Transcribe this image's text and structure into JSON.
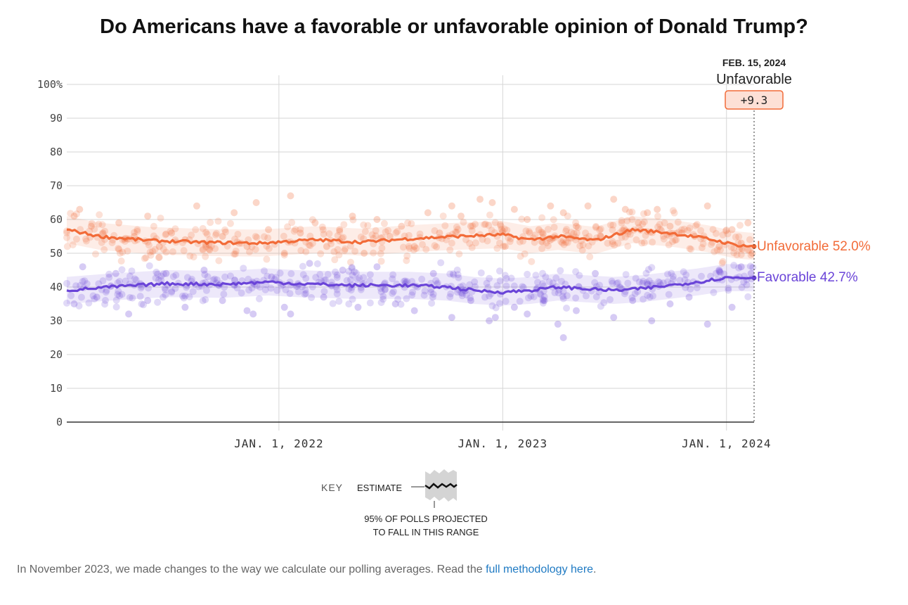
{
  "title": "Do Americans have a favorable or unfavorable opinion of Donald Trump?",
  "header": {
    "date": "FEB. 15, 2024",
    "leader": "Unfavorable",
    "margin": "+9.3"
  },
  "key": {
    "label": "KEY",
    "estimate": "ESTIMATE",
    "range_line1": "95% OF POLLS PROJECTED",
    "range_line2": "TO FALL IN THIS RANGE"
  },
  "footnote": {
    "text": "In November 2023, we made changes to the way we calculate our polling averages. Read the ",
    "link": "full methodology here",
    "end": "."
  },
  "colors": {
    "unfavorable": "#f26b38",
    "favorable": "#6a44d8",
    "margin_box_fill": "#fde0d6",
    "grid": "#d6d6d6"
  },
  "chart_data": {
    "type": "line",
    "x_range": [
      "2021-01-20",
      "2024-02-15"
    ],
    "x_ticks": [
      "JAN. 1, 2022",
      "JAN. 1, 2023",
      "JAN. 1, 2024"
    ],
    "x_tick_dates": [
      "2022-01-01",
      "2023-01-01",
      "2024-01-01"
    ],
    "ylim": [
      0,
      100
    ],
    "y_ticks": [
      "0",
      "10",
      "20",
      "30",
      "40",
      "50",
      "60",
      "70",
      "80",
      "90",
      "100%"
    ],
    "y_tick_values": [
      0,
      10,
      20,
      30,
      40,
      50,
      60,
      70,
      80,
      90,
      100
    ],
    "grid": true,
    "legend": "direct labels at right end",
    "band": "95% of polls projected to fall in this range",
    "series": [
      {
        "name": "Unfavorable",
        "end_label": "Unfavorable 52.0%",
        "final": 52.0,
        "color": "#f26b38",
        "band_halfwidth": 4,
        "estimate": [
          [
            "2021-01-20",
            57.0
          ],
          [
            "2021-03-15",
            55.0
          ],
          [
            "2021-06-01",
            53.8
          ],
          [
            "2021-09-01",
            53.2
          ],
          [
            "2021-12-01",
            53.0
          ],
          [
            "2022-03-01",
            54.0
          ],
          [
            "2022-05-15",
            53.3
          ],
          [
            "2022-08-01",
            54.3
          ],
          [
            "2022-10-15",
            55.0
          ],
          [
            "2023-01-01",
            55.5
          ],
          [
            "2023-02-15",
            54.0
          ],
          [
            "2023-04-01",
            55.0
          ],
          [
            "2023-06-01",
            53.8
          ],
          [
            "2023-08-01",
            57.0
          ],
          [
            "2023-10-01",
            56.0
          ],
          [
            "2023-12-01",
            54.3
          ],
          [
            "2024-01-15",
            52.5
          ],
          [
            "2024-02-15",
            52.0
          ]
        ],
        "polls": [
          [
            "2021-02-01",
            61
          ],
          [
            "2021-02-10",
            63
          ],
          [
            "2021-03-01",
            58
          ],
          [
            "2021-03-20",
            56
          ],
          [
            "2021-04-15",
            59
          ],
          [
            "2021-05-10",
            55
          ],
          [
            "2021-06-01",
            61
          ],
          [
            "2021-06-20",
            52
          ],
          [
            "2021-07-10",
            56
          ],
          [
            "2021-08-01",
            54
          ],
          [
            "2021-08-20",
            64
          ],
          [
            "2021-09-10",
            51
          ],
          [
            "2021-10-01",
            55
          ],
          [
            "2021-10-20",
            62
          ],
          [
            "2021-11-10",
            52
          ],
          [
            "2021-11-25",
            65
          ],
          [
            "2021-12-15",
            57
          ],
          [
            "2022-01-10",
            50
          ],
          [
            "2022-01-20",
            67
          ],
          [
            "2022-02-05",
            56
          ],
          [
            "2022-03-01",
            59
          ],
          [
            "2022-03-20",
            52
          ],
          [
            "2022-04-10",
            57
          ],
          [
            "2022-05-01",
            61
          ],
          [
            "2022-05-20",
            50
          ],
          [
            "2022-06-10",
            60
          ],
          [
            "2022-07-01",
            55
          ],
          [
            "2022-07-20",
            58
          ],
          [
            "2022-08-10",
            52
          ],
          [
            "2022-09-01",
            62
          ],
          [
            "2022-09-20",
            56
          ],
          [
            "2022-10-10",
            64
          ],
          [
            "2022-10-25",
            61
          ],
          [
            "2022-11-10",
            58
          ],
          [
            "2022-11-25",
            66
          ],
          [
            "2022-12-15",
            65
          ],
          [
            "2023-01-05",
            52
          ],
          [
            "2023-01-20",
            63
          ],
          [
            "2023-02-10",
            60
          ],
          [
            "2023-03-01",
            57
          ],
          [
            "2023-03-20",
            64
          ],
          [
            "2023-04-10",
            62
          ],
          [
            "2023-05-01",
            58
          ],
          [
            "2023-05-20",
            64
          ],
          [
            "2023-06-10",
            55
          ],
          [
            "2023-07-01",
            66
          ],
          [
            "2023-07-20",
            63
          ],
          [
            "2023-08-10",
            59
          ],
          [
            "2023-08-25",
            62
          ],
          [
            "2023-09-10",
            63
          ],
          [
            "2023-10-01",
            58
          ],
          [
            "2023-10-20",
            56
          ],
          [
            "2023-11-10",
            55
          ],
          [
            "2023-12-01",
            64
          ],
          [
            "2023-12-20",
            52
          ],
          [
            "2024-01-10",
            57
          ],
          [
            "2024-01-25",
            53
          ],
          [
            "2024-02-05",
            59
          ],
          [
            "2024-02-12",
            50
          ]
        ]
      },
      {
        "name": "Favorable",
        "end_label": "Favorable 42.7%",
        "final": 42.7,
        "color": "#6a44d8",
        "band_halfwidth": 4,
        "estimate": [
          [
            "2021-01-20",
            39.0
          ],
          [
            "2021-04-01",
            40.0
          ],
          [
            "2021-07-01",
            41.0
          ],
          [
            "2021-10-01",
            40.8
          ],
          [
            "2021-12-15",
            41.5
          ],
          [
            "2022-02-01",
            41.0
          ],
          [
            "2022-05-01",
            40.5
          ],
          [
            "2022-08-01",
            40.5
          ],
          [
            "2022-10-01",
            40.0
          ],
          [
            "2022-11-15",
            39.0
          ],
          [
            "2023-01-01",
            38.5
          ],
          [
            "2023-02-15",
            39.0
          ],
          [
            "2023-04-01",
            40.0
          ],
          [
            "2023-05-15",
            39.5
          ],
          [
            "2023-07-01",
            39.0
          ],
          [
            "2023-08-15",
            39.5
          ],
          [
            "2023-10-01",
            40.5
          ],
          [
            "2023-11-15",
            41.5
          ],
          [
            "2024-01-01",
            42.8
          ],
          [
            "2024-02-15",
            42.7
          ]
        ],
        "polls": [
          [
            "2021-02-01",
            35
          ],
          [
            "2021-02-15",
            46
          ],
          [
            "2021-03-10",
            37
          ],
          [
            "2021-04-10",
            44
          ],
          [
            "2021-05-01",
            32
          ],
          [
            "2021-06-01",
            36
          ],
          [
            "2021-07-01",
            44
          ],
          [
            "2021-08-01",
            34
          ],
          [
            "2021-09-01",
            45
          ],
          [
            "2021-10-01",
            36
          ],
          [
            "2021-11-10",
            33
          ],
          [
            "2021-11-20",
            32
          ],
          [
            "2021-12-20",
            43
          ],
          [
            "2022-01-10",
            34
          ],
          [
            "2022-01-20",
            32
          ],
          [
            "2022-02-20",
            47
          ],
          [
            "2022-03-15",
            37
          ],
          [
            "2022-04-15",
            45
          ],
          [
            "2022-05-10",
            34
          ],
          [
            "2022-06-10",
            46
          ],
          [
            "2022-07-10",
            35
          ],
          [
            "2022-08-10",
            33
          ],
          [
            "2022-09-10",
            44
          ],
          [
            "2022-10-10",
            31
          ],
          [
            "2022-11-10",
            36
          ],
          [
            "2022-12-10",
            30
          ],
          [
            "2022-12-20",
            31
          ],
          [
            "2023-01-20",
            34
          ],
          [
            "2023-02-10",
            32
          ],
          [
            "2023-03-10",
            36
          ],
          [
            "2023-04-01",
            29
          ],
          [
            "2023-04-10",
            25
          ],
          [
            "2023-05-01",
            33
          ],
          [
            "2023-06-01",
            44
          ],
          [
            "2023-07-01",
            31
          ],
          [
            "2023-08-01",
            36
          ],
          [
            "2023-09-01",
            30
          ],
          [
            "2023-10-01",
            35
          ],
          [
            "2023-11-01",
            37
          ],
          [
            "2023-12-01",
            29
          ],
          [
            "2023-12-20",
            45
          ],
          [
            "2024-01-10",
            34
          ],
          [
            "2024-01-25",
            46
          ],
          [
            "2024-02-10",
            44
          ]
        ]
      }
    ]
  }
}
